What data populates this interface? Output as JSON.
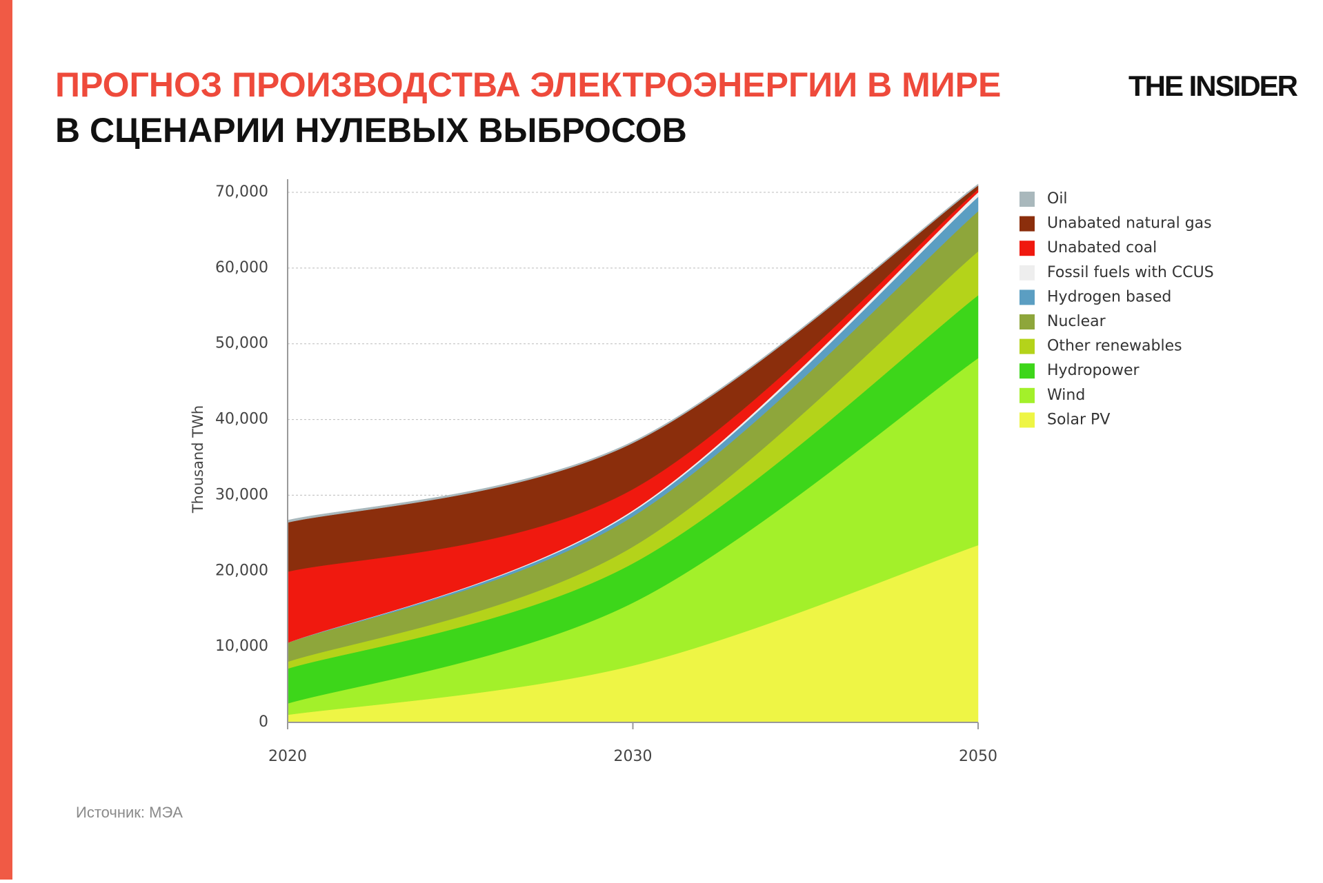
{
  "header": {
    "title": "ПРОГНОЗ ПРОИЗВОДСТВА ЭЛЕКТРОЭНЕРГИИ В МИРЕ",
    "subtitle": "В СЦЕНАРИИ НУЛЕВЫХ ВЫБРОСОВ",
    "logo": "THE INSIDER"
  },
  "footer": {
    "source": "Источник: МЭА"
  },
  "chart_data": {
    "type": "stacked-area",
    "y_label": "Thousand TWh",
    "categories": [
      "2020",
      "2030",
      "2050"
    ],
    "ylim": [
      0,
      71000
    ],
    "yticks": [
      0,
      {
        "value": 10000,
        "label": "10,000"
      },
      {
        "value": 20000,
        "label": "20,000"
      },
      {
        "value": 30000,
        "label": "30,000"
      },
      {
        "value": 40000,
        "label": "40,000"
      },
      {
        "value": 50000,
        "label": "50,000"
      },
      {
        "value": 60000,
        "label": "60,000"
      },
      {
        "value": 70000,
        "label": "70,000"
      }
    ],
    "grid": true,
    "series": [
      {
        "name": "Solar PV",
        "color": "#eef545",
        "values": [
          1000,
          7500,
          23400
        ]
      },
      {
        "name": "Wind",
        "color": "#a3f02a",
        "values": [
          1500,
          8300,
          24700
        ]
      },
      {
        "name": "Hydropower",
        "color": "#3dd61a",
        "values": [
          4600,
          5200,
          8300
        ]
      },
      {
        "name": "Other renewables",
        "color": "#b4d31a",
        "values": [
          900,
          2200,
          5800
        ]
      },
      {
        "name": "Nuclear",
        "color": "#8ea63b",
        "values": [
          2500,
          4000,
          5300
        ]
      },
      {
        "name": "Hydrogen based",
        "color": "#5b9ec2",
        "values": [
          0,
          600,
          1900
        ]
      },
      {
        "name": "Fossil fuels with CCUS",
        "color": "#eeeeee",
        "values": [
          0,
          200,
          600
        ]
      },
      {
        "name": "Unabated coal",
        "color": "#f0190f",
        "values": [
          9400,
          2800,
          400
        ]
      },
      {
        "name": "Unabated natural gas",
        "color": "#8b2e0c",
        "values": [
          6500,
          6100,
          500
        ]
      },
      {
        "name": "Oil",
        "color": "#a9b8bc",
        "values": [
          300,
          200,
          200
        ]
      }
    ]
  }
}
